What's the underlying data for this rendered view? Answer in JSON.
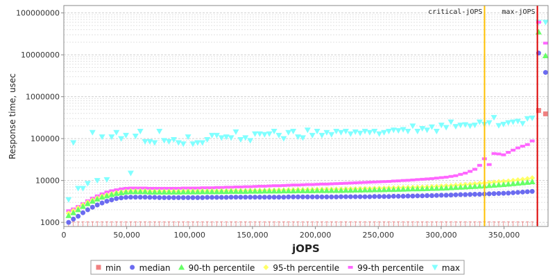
{
  "chart_data": {
    "type": "scatter",
    "xlabel": "jOPS",
    "ylabel": "Response time, usec",
    "x_scale": "linear",
    "y_scale": "log",
    "xlim": [
      0,
      385000
    ],
    "ylim": [
      800,
      150000000
    ],
    "x_ticks": [
      {
        "value": 0,
        "label": "0"
      },
      {
        "value": 50000,
        "label": "50,000"
      },
      {
        "value": 100000,
        "label": "100,000"
      },
      {
        "value": 150000,
        "label": "150,000"
      },
      {
        "value": 200000,
        "label": "200,000"
      },
      {
        "value": 250000,
        "label": "250,000"
      },
      {
        "value": 300000,
        "label": "300,000"
      },
      {
        "value": 350000,
        "label": "350,000"
      }
    ],
    "y_ticks": [
      {
        "value": 1000,
        "label": "1000"
      },
      {
        "value": 10000,
        "label": "10000"
      },
      {
        "value": 100000,
        "label": "100000"
      },
      {
        "value": 1000000,
        "label": "1000000"
      },
      {
        "value": 10000000,
        "label": "10000000"
      },
      {
        "value": 100000000,
        "label": "100000000"
      }
    ],
    "grid": true,
    "legend_position": "bottom",
    "markers": [
      {
        "label": "critical-jOPS",
        "x": 334500,
        "color": "#FFC000"
      },
      {
        "label": "max-jOPS",
        "x": 376500,
        "color": "#DD0000"
      }
    ],
    "series": [
      {
        "name": "min",
        "color": "#F08080",
        "shape": "square",
        "points": [
          [
            377500,
            470000
          ],
          [
            383000,
            390000
          ]
        ]
      },
      {
        "name": "median",
        "color": "#6B6BF0",
        "shape": "circle",
        "x": [
          3800,
          7600,
          11400,
          15200,
          19000,
          22800,
          26600,
          30400,
          34200,
          38000,
          41800,
          45600,
          49400,
          53200,
          57000,
          60800,
          64600,
          68400,
          72200,
          76000,
          79800,
          83600,
          87400,
          91200,
          95000,
          98800,
          102600,
          106400,
          110200,
          114000,
          117800,
          121600,
          125400,
          129200,
          133000,
          136800,
          140600,
          144400,
          148200,
          152000,
          155800,
          159600,
          163400,
          167200,
          171000,
          174800,
          178600,
          182400,
          186200,
          190000,
          193800,
          197600,
          201400,
          205200,
          209000,
          212800,
          216600,
          220400,
          224200,
          228000,
          231800,
          235600,
          239400,
          243200,
          247000,
          250800,
          254600,
          258400,
          262200,
          266000,
          269800,
          273600,
          277400,
          281200,
          285000,
          288800,
          292600,
          296400,
          300200,
          304000,
          307800,
          311600,
          315400,
          319200,
          323000,
          326800,
          330600,
          334400,
          338200,
          342000,
          345800,
          349600,
          353400,
          357200,
          361000,
          364800,
          368600,
          372400
        ],
        "y": [
          1000,
          1200,
          1400,
          1700,
          2000,
          2300,
          2600,
          2900,
          3200,
          3450,
          3700,
          3850,
          3950,
          4000,
          4000,
          4000,
          4000,
          3950,
          3950,
          3900,
          3900,
          3900,
          3900,
          3900,
          3900,
          3900,
          3900,
          3900,
          3900,
          3950,
          3950,
          3950,
          3950,
          3950,
          4000,
          4000,
          4000,
          4000,
          4000,
          4000,
          4000,
          4000,
          4000,
          4000,
          4000,
          4000,
          4050,
          4050,
          4050,
          4050,
          4050,
          4050,
          4050,
          4050,
          4050,
          4050,
          4050,
          4100,
          4100,
          4100,
          4100,
          4100,
          4100,
          4100,
          4150,
          4150,
          4150,
          4150,
          4200,
          4200,
          4200,
          4250,
          4250,
          4300,
          4300,
          4350,
          4350,
          4400,
          4450,
          4450,
          4500,
          4550,
          4600,
          4600,
          4650,
          4700,
          4700,
          4750,
          4800,
          4850,
          4900,
          4950,
          5000,
          5100,
          5200,
          5300,
          5400,
          5500
        ],
        "extra_points": [
          [
            377500,
            11000000
          ],
          [
            383000,
            3800000
          ]
        ]
      },
      {
        "name": "90-th percentile",
        "color": "#66FF66",
        "shape": "triangle-up",
        "x": [
          3800,
          7600,
          11400,
          15200,
          19000,
          22800,
          26600,
          30400,
          34200,
          38000,
          41800,
          45600,
          49400,
          53200,
          57000,
          60800,
          64600,
          68400,
          72200,
          76000,
          79800,
          83600,
          87400,
          91200,
          95000,
          98800,
          102600,
          106400,
          110200,
          114000,
          117800,
          121600,
          125400,
          129200,
          133000,
          136800,
          140600,
          144400,
          148200,
          152000,
          155800,
          159600,
          163400,
          167200,
          171000,
          174800,
          178600,
          182400,
          186200,
          190000,
          193800,
          197600,
          201400,
          205200,
          209000,
          212800,
          216600,
          220400,
          224200,
          228000,
          231800,
          235600,
          239400,
          243200,
          247000,
          250800,
          254600,
          258400,
          262200,
          266000,
          269800,
          273600,
          277400,
          281200,
          285000,
          288800,
          292600,
          296400,
          300200,
          304000,
          307800,
          311600,
          315400,
          319200,
          323000,
          326800,
          330600,
          334400,
          338200,
          342000,
          345800,
          349600,
          353400,
          357200,
          361000,
          364800,
          368600,
          372400
        ],
        "y": [
          1450,
          1700,
          2000,
          2400,
          2800,
          3200,
          3600,
          4000,
          4300,
          4600,
          4900,
          5100,
          5300,
          5400,
          5400,
          5400,
          5400,
          5300,
          5300,
          5300,
          5300,
          5300,
          5300,
          5300,
          5350,
          5350,
          5350,
          5350,
          5400,
          5400,
          5400,
          5400,
          5450,
          5450,
          5500,
          5500,
          5500,
          5500,
          5550,
          5550,
          5550,
          5600,
          5600,
          5600,
          5600,
          5650,
          5650,
          5650,
          5700,
          5700,
          5700,
          5700,
          5750,
          5750,
          5750,
          5800,
          5800,
          5800,
          5850,
          5850,
          5900,
          5900,
          5950,
          5950,
          6000,
          6000,
          6050,
          6100,
          6100,
          6150,
          6200,
          6250,
          6300,
          6300,
          6350,
          6400,
          6450,
          6500,
          6550,
          6600,
          6700,
          6800,
          6900,
          7000,
          7100,
          7200,
          7300,
          7400,
          7550,
          7700,
          7850,
          8000,
          8200,
          8400,
          8600,
          8800,
          9000,
          9300
        ],
        "extra_points": [
          [
            377500,
            35000000
          ],
          [
            383000,
            9500000
          ]
        ]
      },
      {
        "name": "95-th percentile",
        "color": "#FFFF66",
        "shape": "diamond",
        "x": [
          3800,
          7600,
          11400,
          15200,
          19000,
          22800,
          26600,
          30400,
          34200,
          38000,
          41800,
          45600,
          49400,
          53200,
          57000,
          60800,
          64600,
          68400,
          72200,
          76000,
          79800,
          83600,
          87400,
          91200,
          95000,
          98800,
          102600,
          106400,
          110200,
          114000,
          117800,
          121600,
          125400,
          129200,
          133000,
          136800,
          140600,
          144400,
          148200,
          152000,
          155800,
          159600,
          163400,
          167200,
          171000,
          174800,
          178600,
          182400,
          186200,
          190000,
          193800,
          197600,
          201400,
          205200,
          209000,
          212800,
          216600,
          220400,
          224200,
          228000,
          231800,
          235600,
          239400,
          243200,
          247000,
          250800,
          254600,
          258400,
          262200,
          266000,
          269800,
          273600,
          277400,
          281200,
          285000,
          288800,
          292600,
          296400,
          300200,
          304000,
          307800,
          311600,
          315400,
          319200,
          323000,
          326800,
          330600,
          334400,
          338200,
          342000,
          345800,
          349600,
          353400,
          357200,
          361000,
          364800,
          368600,
          372400
        ],
        "y": [
          1650,
          1900,
          2200,
          2600,
          3000,
          3400,
          3800,
          4200,
          4500,
          4800,
          5100,
          5300,
          5500,
          5600,
          5600,
          5600,
          5600,
          5500,
          5500,
          5500,
          5500,
          5500,
          5500,
          5500,
          5550,
          5550,
          5550,
          5550,
          5600,
          5600,
          5600,
          5600,
          5650,
          5650,
          5700,
          5700,
          5700,
          5700,
          5750,
          5750,
          5800,
          5800,
          5850,
          5850,
          5900,
          5900,
          5950,
          5950,
          6000,
          6000,
          6050,
          6050,
          6100,
          6100,
          6150,
          6150,
          6200,
          6200,
          6250,
          6300,
          6300,
          6350,
          6400,
          6400,
          6450,
          6500,
          6550,
          6600,
          6650,
          6700,
          6750,
          6800,
          6850,
          6900,
          6950,
          7000,
          7100,
          7200,
          7300,
          7400,
          7500,
          7650,
          7800,
          7950,
          8100,
          8300,
          8500,
          8700,
          8900,
          9100,
          9300,
          9500,
          9700,
          10000,
          10300,
          10600,
          11000,
          11500
        ]
      },
      {
        "name": "99-th percentile",
        "color": "#FF66FF",
        "shape": "dash",
        "x": [
          3800,
          7600,
          11400,
          15200,
          19000,
          22800,
          26600,
          30400,
          34200,
          38000,
          41800,
          45600,
          49400,
          53200,
          57000,
          60800,
          64600,
          68400,
          72200,
          76000,
          79800,
          83600,
          87400,
          91200,
          95000,
          98800,
          102600,
          106400,
          110200,
          114000,
          117800,
          121600,
          125400,
          129200,
          133000,
          136800,
          140600,
          144400,
          148200,
          152000,
          155800,
          159600,
          163400,
          167200,
          171000,
          174800,
          178600,
          182400,
          186200,
          190000,
          193800,
          197600,
          201400,
          205200,
          209000,
          212800,
          216600,
          220400,
          224200,
          228000,
          231800,
          235600,
          239400,
          243200,
          247000,
          250800,
          254600,
          258400,
          262200,
          266000,
          269800,
          273600,
          277400,
          281200,
          285000,
          288800,
          292600,
          296400,
          300200,
          304000,
          307800,
          311600,
          315400,
          319200,
          323000,
          326800,
          330600,
          334400,
          338200,
          342000,
          345800,
          349600,
          353400,
          357200,
          361000,
          364800,
          368600,
          372400
        ],
        "y": [
          1900,
          2100,
          2400,
          2800,
          3300,
          3800,
          4300,
          4800,
          5300,
          5700,
          6000,
          6300,
          6500,
          6600,
          6600,
          6600,
          6600,
          6500,
          6500,
          6500,
          6500,
          6500,
          6500,
          6500,
          6600,
          6600,
          6600,
          6600,
          6700,
          6700,
          6700,
          6800,
          6800,
          6900,
          6900,
          7000,
          7000,
          7100,
          7100,
          7200,
          7300,
          7300,
          7400,
          7500,
          7500,
          7600,
          7700,
          7800,
          7800,
          7900,
          8000,
          8000,
          8100,
          8200,
          8200,
          8300,
          8400,
          8500,
          8600,
          8700,
          8800,
          8900,
          9000,
          9100,
          9200,
          9300,
          9400,
          9500,
          9700,
          9800,
          10000,
          10100,
          10300,
          10500,
          10700,
          10900,
          11100,
          11400,
          11700,
          12000,
          12500,
          13000,
          14000,
          15000,
          16500,
          18500,
          23000,
          33000,
          24000,
          44000,
          43000,
          41000,
          47000,
          53000,
          60000,
          66000,
          72000,
          88000
        ],
        "extra_points": [
          [
            377500,
            60000000
          ],
          [
            383000,
            19000000
          ]
        ]
      },
      {
        "name": "max",
        "color": "#80FFFF",
        "shape": "triangle-down",
        "x": [
          3800,
          7600,
          11400,
          15200,
          19000,
          22800,
          26600,
          30400,
          34200,
          38000,
          41800,
          45600,
          49400,
          53200,
          57000,
          60800,
          64600,
          68400,
          72200,
          76000,
          79800,
          83600,
          87400,
          91200,
          95000,
          98800,
          102600,
          106400,
          110200,
          114000,
          117800,
          121600,
          125400,
          129200,
          133000,
          136800,
          140600,
          144400,
          148200,
          152000,
          155800,
          159600,
          163400,
          167200,
          171000,
          174800,
          178600,
          182400,
          186200,
          190000,
          193800,
          197600,
          201400,
          205200,
          209000,
          212800,
          216600,
          220400,
          224200,
          228000,
          231800,
          235600,
          239400,
          243200,
          247000,
          250800,
          254600,
          258400,
          262200,
          266000,
          269800,
          273600,
          277400,
          281200,
          285000,
          288800,
          292600,
          296400,
          300200,
          304000,
          307800,
          311600,
          315400,
          319200,
          323000,
          326800,
          330600,
          334400,
          338200,
          342000,
          345800,
          349600,
          353400,
          357200,
          361000,
          364800,
          368600,
          372400
        ],
        "y": [
          3500,
          80000,
          6500,
          6500,
          8500,
          140000,
          10000,
          110000,
          10500,
          110000,
          140000,
          100000,
          120000,
          15000,
          115000,
          150000,
          85000,
          85000,
          80000,
          150000,
          90000,
          85000,
          95000,
          80000,
          75000,
          110000,
          75000,
          80000,
          80000,
          95000,
          120000,
          120000,
          105000,
          110000,
          105000,
          145000,
          95000,
          105000,
          90000,
          130000,
          130000,
          125000,
          130000,
          150000,
          120000,
          100000,
          140000,
          150000,
          110000,
          105000,
          160000,
          120000,
          150000,
          120000,
          140000,
          125000,
          150000,
          140000,
          150000,
          130000,
          145000,
          135000,
          150000,
          140000,
          150000,
          130000,
          140000,
          150000,
          160000,
          155000,
          165000,
          150000,
          200000,
          150000,
          175000,
          160000,
          190000,
          150000,
          210000,
          185000,
          250000,
          195000,
          210000,
          215000,
          200000,
          210000,
          250000,
          220000,
          240000,
          320000,
          205000,
          220000,
          240000,
          250000,
          260000,
          230000,
          300000,
          310000
        ],
        "extra_points": [
          [
            377500,
            60000000
          ],
          [
            383000,
            60000000
          ]
        ]
      }
    ]
  }
}
